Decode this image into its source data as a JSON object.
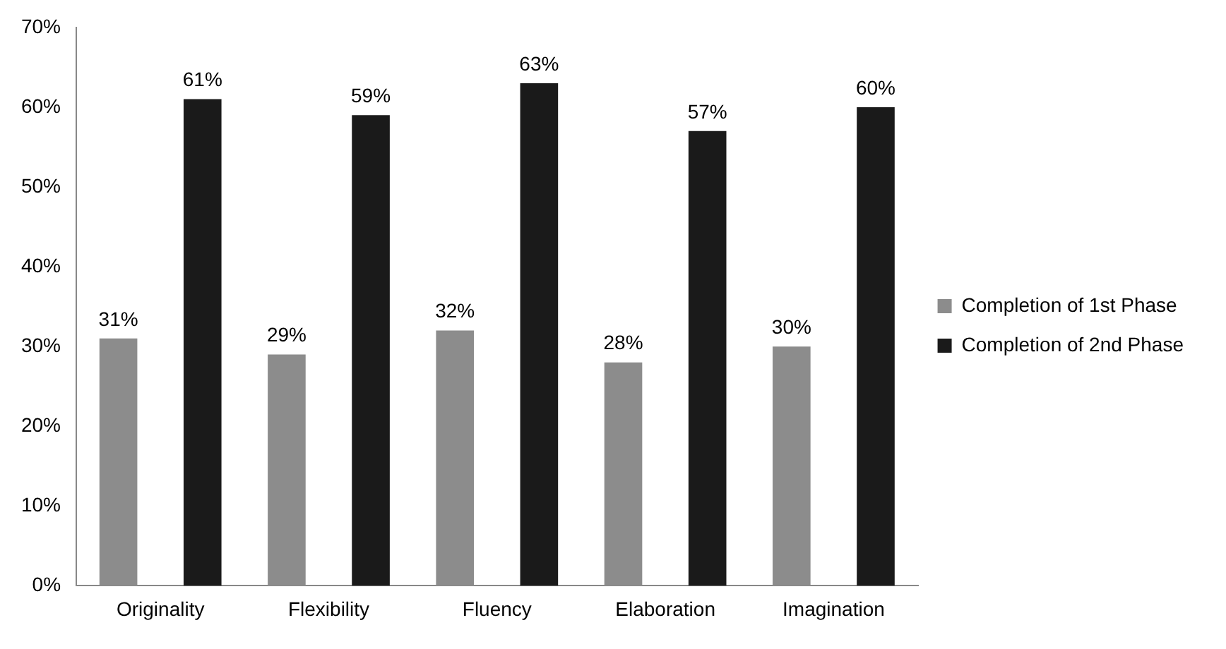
{
  "chart_data": {
    "type": "bar",
    "categories": [
      "Originality",
      "Flexibility",
      "Fluency",
      "Elaboration",
      "Imagination"
    ],
    "series": [
      {
        "name": "Completion of 1st Phase",
        "color": "#8c8c8c",
        "values": [
          31,
          29,
          32,
          28,
          30
        ],
        "value_labels": [
          "31%",
          "29%",
          "32%",
          "28%",
          "30%"
        ]
      },
      {
        "name": "Completion of 2nd Phase",
        "color": "#1a1a1a",
        "values": [
          61,
          59,
          63,
          57,
          60
        ],
        "value_labels": [
          "61%",
          "59%",
          "63%",
          "57%",
          "60%"
        ]
      }
    ],
    "ylim": [
      0,
      70
    ],
    "yticks": [
      {
        "value": 0,
        "label": "0%"
      },
      {
        "value": 10,
        "label": "10%"
      },
      {
        "value": 20,
        "label": "20%"
      },
      {
        "value": 30,
        "label": "30%"
      },
      {
        "value": 40,
        "label": "40%"
      },
      {
        "value": 50,
        "label": "50%"
      },
      {
        "value": 60,
        "label": "60%"
      },
      {
        "value": 70,
        "label": "70%"
      }
    ],
    "grid": false,
    "legend": "right"
  }
}
